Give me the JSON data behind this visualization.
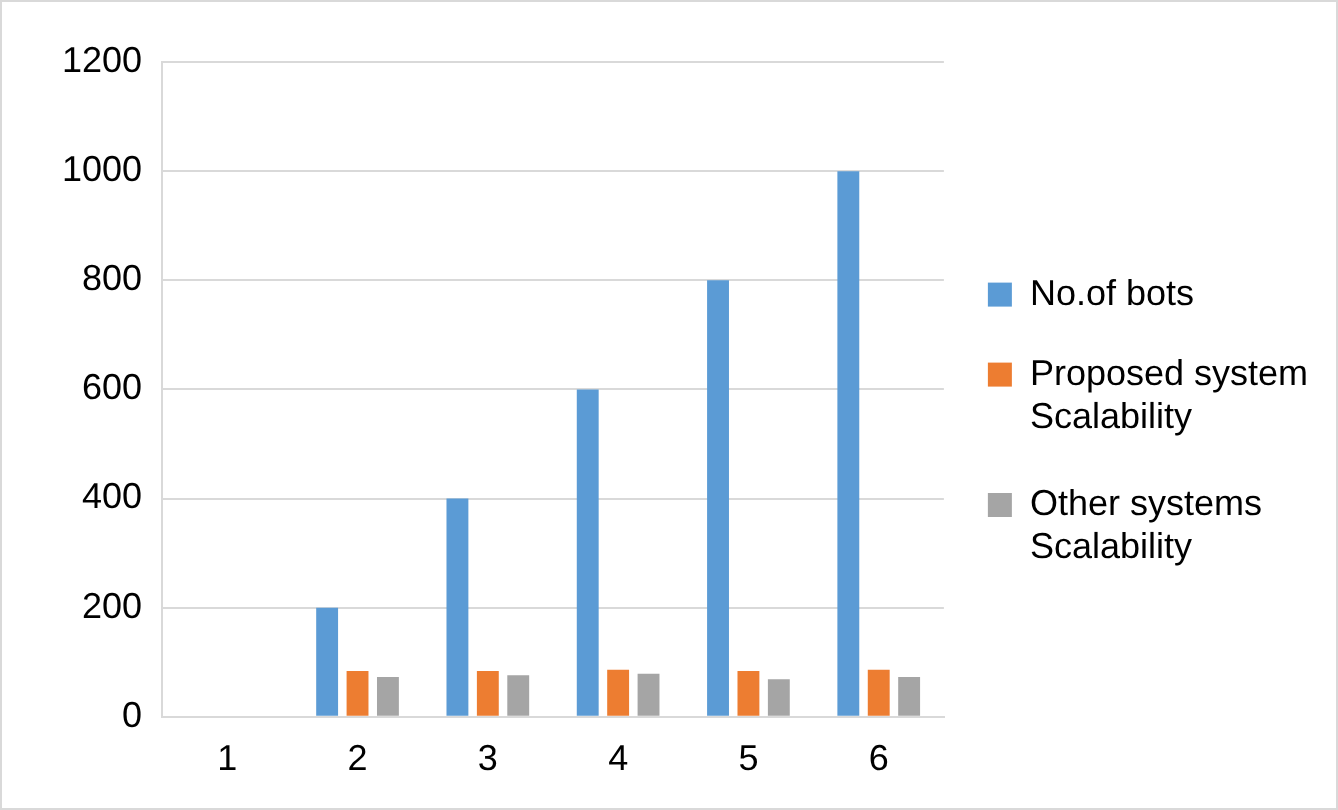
{
  "chart_data": {
    "type": "bar",
    "categories": [
      "1",
      "2",
      "3",
      "4",
      "5",
      "6"
    ],
    "series": [
      {
        "name": "No.of bots",
        "color": "#5b9bd5",
        "values": [
          0,
          200,
          400,
          600,
          800,
          1000
        ]
      },
      {
        "name": "Proposed system Scalability",
        "color": "#ed7d31",
        "values": [
          0,
          84,
          84,
          86,
          84,
          86
        ]
      },
      {
        "name": "Other systems Scalability",
        "color": "#a5a5a5",
        "values": [
          0,
          73,
          76,
          79,
          69,
          73
        ]
      }
    ],
    "ylim": [
      0,
      1200
    ],
    "yticks": [
      0,
      200,
      400,
      600,
      800,
      1000,
      1200
    ],
    "grid": "y",
    "legend": "right"
  }
}
